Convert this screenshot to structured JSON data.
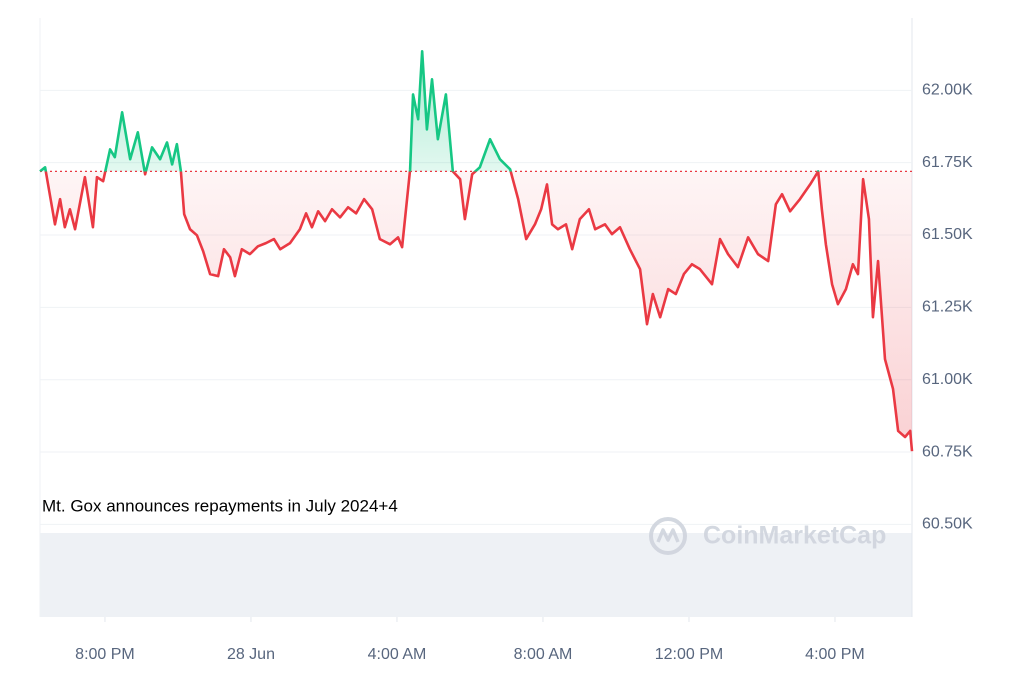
{
  "chart_data": {
    "type": "line",
    "annotation": "Mt. Gox announces repayments in July 2024+4",
    "watermark": "CoinMarketCap",
    "colors": {
      "up": "#16c784",
      "down": "#ea3943"
    },
    "baseline": 61720,
    "xlim": [
      18.22,
      42.11
    ],
    "xticks": [
      {
        "value": 20,
        "label": "8:00 PM"
      },
      {
        "value": 24,
        "label": "28 Jun"
      },
      {
        "value": 28,
        "label": "4:00 AM"
      },
      {
        "value": 32,
        "label": "8:00 AM"
      },
      {
        "value": 36,
        "label": "12:00 PM"
      },
      {
        "value": 40,
        "label": "4:00 PM"
      }
    ],
    "ylim": [
      60180,
      62250
    ],
    "yticks": [
      {
        "value": 60500,
        "label": "60.50K"
      },
      {
        "value": 60750,
        "label": "60.75K"
      },
      {
        "value": 61000,
        "label": "61.00K"
      },
      {
        "value": 61250,
        "label": "61.25K"
      },
      {
        "value": 61500,
        "label": "61.50K"
      },
      {
        "value": 61750,
        "label": "61.75K"
      },
      {
        "value": 62000,
        "label": "62.00K"
      }
    ],
    "grid": true,
    "x": [
      18.22,
      18.36,
      18.63,
      18.77,
      18.9,
      19.04,
      19.18,
      19.45,
      19.67,
      19.78,
      19.95,
      20.14,
      20.27,
      20.47,
      20.69,
      20.9,
      21.1,
      21.29,
      21.51,
      21.7,
      21.84,
      21.97,
      22.08,
      22.17,
      22.33,
      22.52,
      22.69,
      22.88,
      23.1,
      23.26,
      23.43,
      23.56,
      23.75,
      23.97,
      24.19,
      24.41,
      24.63,
      24.8,
      25.07,
      25.34,
      25.51,
      25.67,
      25.84,
      26.03,
      26.22,
      26.44,
      26.66,
      26.88,
      27.1,
      27.32,
      27.53,
      27.81,
      28.03,
      28.14,
      28.36,
      28.44,
      28.58,
      28.69,
      28.82,
      28.96,
      29.12,
      29.34,
      29.53,
      29.73,
      29.86,
      30.06,
      30.27,
      30.55,
      30.82,
      31.1,
      31.32,
      31.54,
      31.78,
      31.95,
      32.11,
      32.25,
      32.41,
      32.63,
      32.8,
      33.01,
      33.26,
      33.43,
      33.7,
      33.89,
      34.11,
      34.38,
      34.66,
      34.85,
      35.01,
      35.21,
      35.43,
      35.64,
      35.86,
      36.08,
      36.3,
      36.63,
      36.85,
      37.07,
      37.34,
      37.62,
      37.89,
      38.17,
      38.38,
      38.55,
      38.77,
      39.04,
      39.32,
      39.54,
      39.64,
      39.75,
      39.92,
      40.08,
      40.3,
      40.49,
      40.63,
      40.77,
      40.93,
      41.04,
      41.18,
      41.37,
      41.59,
      41.73,
      41.92,
      42.06,
      42.11
    ],
    "values": [
      61720,
      61734,
      61537,
      61624,
      61527,
      61589,
      61520,
      61700,
      61527,
      61700,
      61686,
      61796,
      61769,
      61924,
      61762,
      61855,
      61710,
      61803,
      61762,
      61820,
      61744,
      61814,
      61720,
      61572,
      61520,
      61499,
      61444,
      61365,
      61358,
      61451,
      61423,
      61358,
      61451,
      61434,
      61461,
      61472,
      61486,
      61451,
      61472,
      61520,
      61575,
      61527,
      61582,
      61548,
      61589,
      61561,
      61596,
      61575,
      61624,
      61589,
      61486,
      61468,
      61492,
      61458,
      61727,
      61986,
      61900,
      62135,
      61865,
      62038,
      61831,
      61986,
      61720,
      61693,
      61555,
      61710,
      61734,
      61831,
      61762,
      61727,
      61624,
      61486,
      61537,
      61589,
      61675,
      61537,
      61520,
      61537,
      61451,
      61555,
      61589,
      61520,
      61537,
      61503,
      61527,
      61451,
      61382,
      61192,
      61296,
      61216,
      61313,
      61296,
      61365,
      61399,
      61382,
      61330,
      61486,
      61434,
      61389,
      61492,
      61434,
      61410,
      61606,
      61641,
      61582,
      61624,
      61675,
      61720,
      61589,
      61468,
      61330,
      61261,
      61313,
      61399,
      61365,
      61693,
      61555,
      61216,
      61410,
      61071,
      60968,
      60823,
      60802,
      60823,
      60753
    ]
  }
}
